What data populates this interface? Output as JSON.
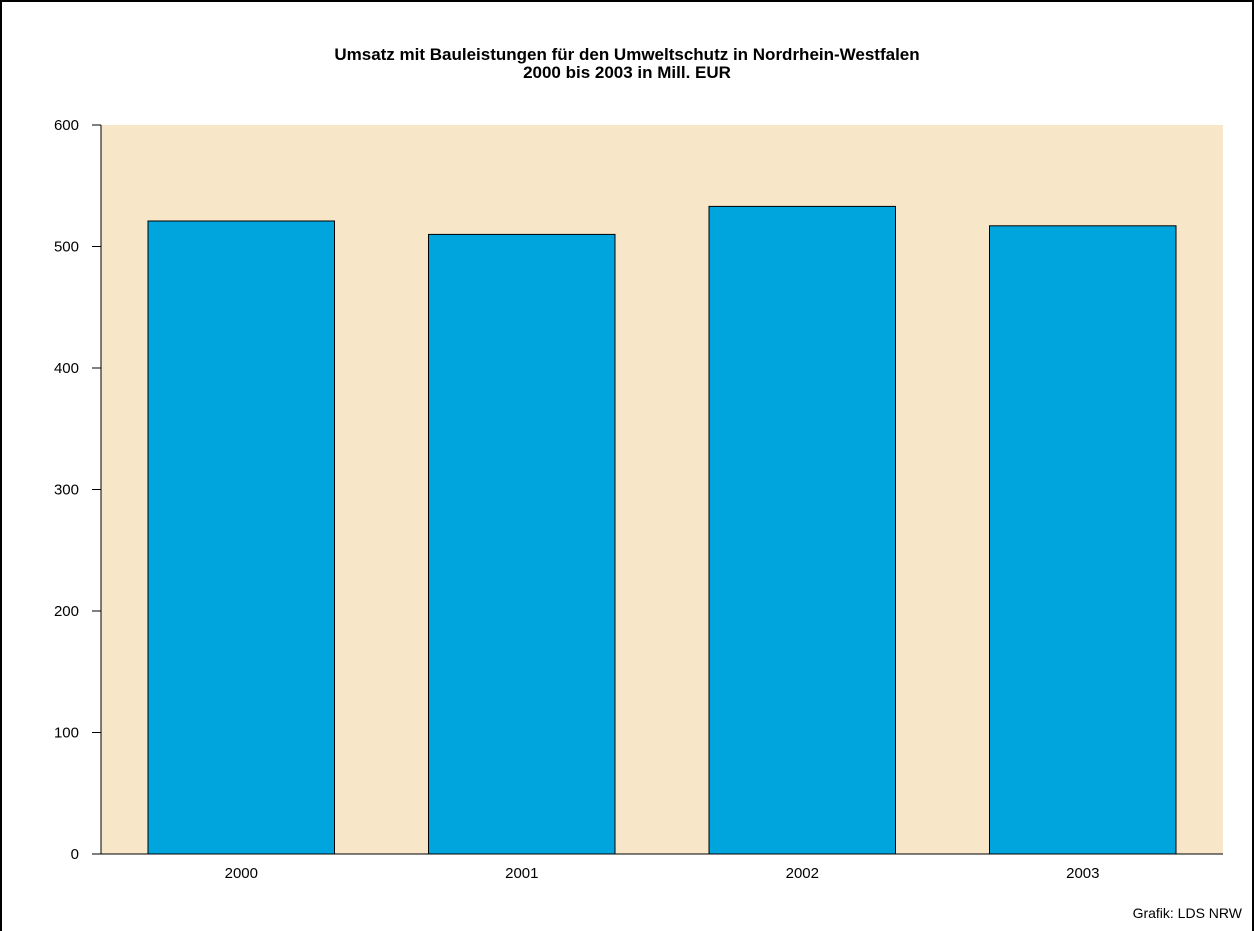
{
  "title": {
    "line1": "Umsatz mit  Bauleistungen für den Umweltschutz in Nordrhein-Westfalen",
    "line2": "2000 bis 2003 in Mill. EUR"
  },
  "credit": "Grafik: LDS NRW",
  "colors": {
    "plot_background": "#f8e6c9",
    "bar_fill": "#00a5de",
    "bar_stroke": "#000000"
  },
  "chart_data": {
    "type": "bar",
    "title": "Umsatz mit  Bauleistungen für den Umweltschutz in Nordrhein-Westfalen 2000 bis 2003 in Mill. EUR",
    "categories": [
      "2000",
      "2001",
      "2002",
      "2003"
    ],
    "values": [
      521,
      510,
      533,
      517
    ],
    "xlabel": "",
    "ylabel": "",
    "ylim": [
      0,
      600
    ],
    "yticks": [
      0,
      100,
      200,
      300,
      400,
      500,
      600
    ],
    "grid": false,
    "legend": "none"
  }
}
